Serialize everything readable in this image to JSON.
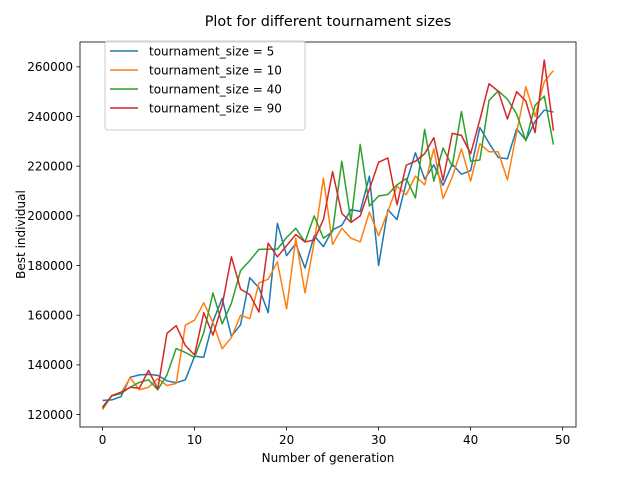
{
  "chart_data": {
    "type": "line",
    "title": "Plot for different tournament sizes",
    "xlabel": "Number of generation",
    "ylabel": "Best individual",
    "xlim": [
      -2.45,
      51.45
    ],
    "ylim": [
      115000,
      270000
    ],
    "xticks": [
      0,
      10,
      20,
      30,
      40,
      50
    ],
    "yticks": [
      120000,
      140000,
      160000,
      180000,
      200000,
      220000,
      240000,
      260000
    ],
    "grid": false,
    "legend_position": "top-left",
    "x": [
      0,
      1,
      2,
      3,
      4,
      5,
      6,
      7,
      8,
      9,
      10,
      11,
      12,
      13,
      14,
      15,
      16,
      17,
      18,
      19,
      20,
      21,
      22,
      23,
      24,
      25,
      26,
      27,
      28,
      29,
      30,
      31,
      32,
      33,
      34,
      35,
      36,
      37,
      38,
      39,
      40,
      41,
      42,
      43,
      44,
      45,
      46,
      47,
      48,
      49
    ],
    "series": [
      {
        "name": "tournament_size = 5",
        "color": "#1f77b4",
        "values": [
          125700,
          125900,
          127200,
          135000,
          136000,
          136200,
          135800,
          133600,
          132800,
          134000,
          143500,
          143100,
          157500,
          166800,
          151500,
          156200,
          175100,
          171000,
          161000,
          197000,
          184000,
          188800,
          179000,
          192000,
          187600,
          194400,
          196200,
          202500,
          201800,
          216000,
          180000,
          202500,
          198500,
          213400,
          225400,
          214800,
          220500,
          212300,
          220800,
          216800,
          218200,
          235600,
          229300,
          223500,
          223000,
          235000,
          230500,
          238000,
          242600,
          241800
        ]
      },
      {
        "name": "tournament_size = 10",
        "color": "#ff7f0e",
        "values": [
          122000,
          127700,
          128600,
          134800,
          130000,
          131000,
          134500,
          131700,
          132500,
          156000,
          158000,
          165000,
          157000,
          146500,
          151000,
          160000,
          158600,
          173000,
          174500,
          181500,
          162500,
          191000,
          169000,
          189500,
          215200,
          188500,
          195000,
          191000,
          189500,
          201500,
          192000,
          201700,
          212000,
          208500,
          216000,
          212500,
          227000,
          207000,
          215500,
          227000,
          214000,
          229000,
          225800,
          225800,
          214500,
          233500,
          252000,
          240000,
          254000,
          258500
        ]
      },
      {
        "name": "tournament_size = 40",
        "color": "#2ca02c",
        "values": [
          122500,
          127500,
          128500,
          131000,
          133000,
          134000,
          130000,
          136000,
          146600,
          145000,
          143000,
          153000,
          169000,
          156500,
          164800,
          178000,
          182000,
          186500,
          186600,
          186600,
          191300,
          195000,
          189500,
          200000,
          191000,
          193700,
          222000,
          197800,
          228800,
          204000,
          208000,
          208600,
          212500,
          215000,
          207200,
          234800,
          214000,
          227300,
          220000,
          242000,
          222000,
          222500,
          246500,
          250300,
          247000,
          241000,
          230200,
          244500,
          248200,
          228700
        ]
      },
      {
        "name": "tournament_size = 90",
        "color": "#d62728",
        "values": [
          123000,
          127600,
          129000,
          131000,
          130600,
          137800,
          130300,
          152700,
          155800,
          147800,
          144000,
          161000,
          152000,
          164000,
          183500,
          170500,
          168300,
          161300,
          189000,
          183500,
          188000,
          192500,
          189500,
          190300,
          198500,
          217800,
          201000,
          197400,
          200000,
          210700,
          221600,
          223300,
          204500,
          220400,
          222000,
          225000,
          231500,
          214300,
          233200,
          232400,
          225000,
          238700,
          253200,
          250200,
          239000,
          250000,
          246200,
          233500,
          262700,
          234300
        ]
      }
    ]
  }
}
